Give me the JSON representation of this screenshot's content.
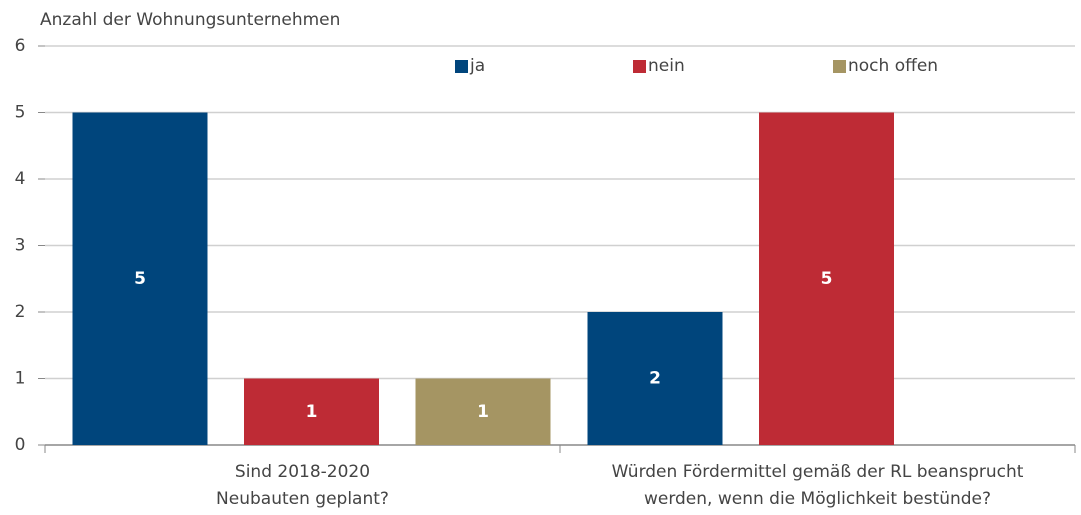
{
  "chart_data": {
    "type": "bar",
    "title": "Anzahl der Wohnungsunternehmen",
    "categories": [
      "Sind 2018-2020\nNeubauten geplant?",
      "Würden Fördermittel gemäß der RL beansprucht\nwerden, wenn die Möglichkeit bestünde?"
    ],
    "series": [
      {
        "name": "ja",
        "color": "#00457c",
        "values": [
          5,
          2
        ]
      },
      {
        "name": "nein",
        "color": "#be2b35",
        "values": [
          1,
          5
        ]
      },
      {
        "name": "noch offen",
        "color": "#a59563",
        "values": [
          1,
          null
        ]
      }
    ],
    "ylim": [
      0,
      6
    ],
    "yticks": [
      0,
      1,
      2,
      3,
      4,
      5,
      6
    ],
    "grid": true,
    "legend": "top"
  }
}
